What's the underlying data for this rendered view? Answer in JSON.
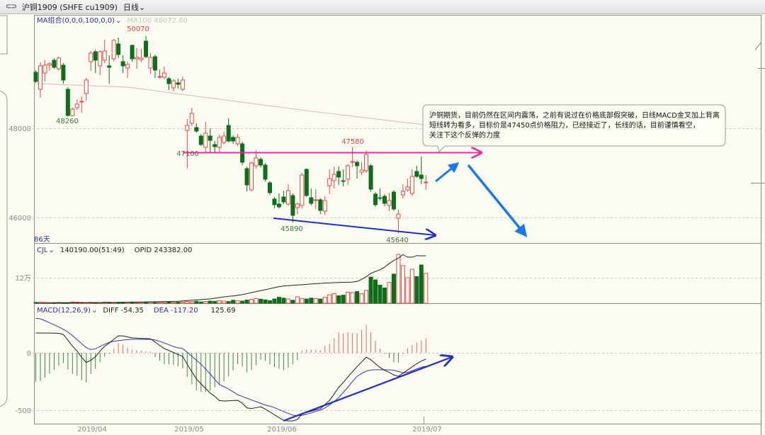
{
  "header": {
    "link_icon": "link-icon",
    "symbol": "沪铜1909 (SHFE  cu1909)",
    "period": "日线",
    "period_icon": "chevron-down-icon"
  },
  "price_panel": {
    "indicator": "MA组合(0,0,0,100,0,0)",
    "ma_readout": "MA100 48072.60",
    "days": "86天",
    "axis_ticks": [
      "48000",
      "46000"
    ],
    "labels": {
      "high": "50070",
      "low1": "48260",
      "low2": "47100",
      "high2": "47580",
      "low3": "45890",
      "low4": "45640"
    }
  },
  "volume_panel": {
    "indicator": "CJL",
    "volume_readout": "140190.00(51:49)",
    "oi_readout": "OPID 243382.00",
    "axis_ticks": [
      "12万"
    ]
  },
  "macd_panel": {
    "indicator": "MACD(12,26,9)",
    "diff": "DIFF -54.35",
    "dea": "DEA -117.20",
    "macd": "125.69",
    "axis_ticks": [
      "0",
      "-500"
    ]
  },
  "dates": [
    "2019/04",
    "2019/05",
    "2019/06",
    "2019/07"
  ],
  "annotation": {
    "line1": "沪铜期货，目前仍然在区间内震荡，之前有说过在价格底部假突破，日线MACD金叉加上背离",
    "line2": "短线转为看多，目标价是47450点价格阻力，已经接近了，长线的话，目前谨慎看空，",
    "line3": "关注下这个反弹的力度"
  },
  "colors": {
    "up": "#e04848",
    "down": "#0e6e1e",
    "ma100": "#c8c0b8",
    "resistance": "#e0309a",
    "trend": "#2030c0",
    "arrow": "#1a78e8",
    "dea": "#3838a8",
    "diff": "#202020"
  },
  "chart_data": {
    "type": "candlestick",
    "ylim": [
      45400,
      50500
    ],
    "resistance_level": 47450,
    "candles_ohlc": [
      [
        49254,
        49300,
        49016,
        49048
      ],
      [
        48873,
        49476,
        48682,
        49397
      ],
      [
        49238,
        49524,
        49048,
        49413
      ],
      [
        49413,
        49476,
        49286,
        49444
      ],
      [
        49524,
        49571,
        49333,
        49365
      ],
      [
        49333,
        49603,
        49286,
        49571
      ],
      [
        49413,
        49460,
        49000,
        49079
      ],
      [
        48873,
        48920,
        48260,
        48286
      ],
      [
        48286,
        48460,
        48260,
        48428
      ],
      [
        48460,
        48651,
        48413,
        48540
      ],
      [
        48587,
        48714,
        48349,
        48603
      ],
      [
        48777,
        49127,
        48619,
        49079
      ],
      [
        49492,
        49730,
        49286,
        49682
      ],
      [
        49714,
        49760,
        49238,
        49524
      ],
      [
        49397,
        49746,
        49190,
        49714
      ],
      [
        49524,
        49984,
        49460,
        49730
      ],
      [
        49397,
        49635,
        49000,
        49365
      ],
      [
        49555,
        50000,
        49500,
        49968
      ],
      [
        49889,
        50032,
        49571,
        49651
      ],
      [
        49492,
        49635,
        49238,
        49397
      ],
      [
        49349,
        49492,
        49127,
        49429
      ],
      [
        49857,
        49873,
        49492,
        49555
      ],
      [
        49555,
        49794,
        49333,
        49587
      ],
      [
        49540,
        49778,
        49476,
        49571
      ],
      [
        49952,
        50070,
        49571,
        49603
      ],
      [
        49349,
        49682,
        49222,
        49587
      ],
      [
        49603,
        49650,
        49127,
        49302
      ],
      [
        49143,
        49317,
        49111,
        49159
      ],
      [
        49143,
        49381,
        49100,
        49238
      ],
      [
        49111,
        49150,
        48857,
        49000
      ],
      [
        48905,
        49100,
        48825,
        49063
      ],
      [
        49016,
        49111,
        48889,
        48984
      ],
      [
        48873,
        49159,
        48830,
        49079
      ],
      [
        47952,
        48206,
        47100,
        48063
      ],
      [
        48111,
        48460,
        48050,
        48333
      ],
      [
        48016,
        48111,
        47900,
        47936
      ],
      [
        47825,
        47870,
        47600,
        47635
      ],
      [
        47571,
        48143,
        47460,
        47889
      ],
      [
        47825,
        48000,
        47460,
        47730
      ],
      [
        47635,
        47714,
        47460,
        47587
      ],
      [
        47571,
        47857,
        47460,
        47794
      ],
      [
        47682,
        47920,
        47640,
        47825
      ],
      [
        48063,
        48222,
        47680,
        47714
      ],
      [
        47794,
        47840,
        47650,
        47714
      ],
      [
        47651,
        47873,
        47600,
        47794
      ],
      [
        47651,
        47700,
        47175,
        47238
      ],
      [
        47095,
        47140,
        46587,
        46730
      ],
      [
        46619,
        47260,
        46587,
        47222
      ],
      [
        47159,
        47508,
        47100,
        47333
      ],
      [
        47302,
        47350,
        47120,
        47175
      ],
      [
        47175,
        47220,
        46800,
        46857
      ],
      [
        46778,
        46820,
        46500,
        46556
      ],
      [
        46413,
        46460,
        46206,
        46286
      ],
      [
        46302,
        46540,
        46200,
        46238
      ],
      [
        46460,
        46600,
        46300,
        46349
      ],
      [
        46302,
        46746,
        46260,
        46603
      ],
      [
        46492,
        46540,
        45890,
        46048
      ],
      [
        46222,
        46340,
        46079,
        46302
      ],
      [
        46270,
        47000,
        46200,
        46952
      ],
      [
        47079,
        47100,
        46460,
        46492
      ],
      [
        46444,
        46650,
        46270,
        46317
      ],
      [
        46381,
        46635,
        46190,
        46397
      ],
      [
        46397,
        46440,
        46080,
        46159
      ],
      [
        46143,
        46476,
        46060,
        46381
      ],
      [
        46714,
        47079,
        46524,
        46873
      ],
      [
        46825,
        47143,
        46650,
        46968
      ],
      [
        47032,
        47143,
        46730,
        46905
      ],
      [
        46825,
        47079,
        46700,
        46810
      ],
      [
        46857,
        47200,
        46730,
        47159
      ],
      [
        47238,
        47580,
        47127,
        47254
      ],
      [
        47238,
        47280,
        46873,
        47159
      ],
      [
        47016,
        47238,
        46950,
        47064
      ],
      [
        47048,
        47500,
        47000,
        47413
      ],
      [
        47159,
        47200,
        46580,
        46635
      ],
      [
        46524,
        46570,
        46238,
        46286
      ],
      [
        46444,
        46650,
        46380,
        46429
      ],
      [
        46476,
        46520,
        46250,
        46317
      ],
      [
        46270,
        46555,
        46143,
        46381
      ],
      [
        46571,
        46610,
        46150,
        46190
      ],
      [
        45984,
        46180,
        45640,
        46079
      ],
      [
        46508,
        46746,
        46430,
        46587
      ],
      [
        46619,
        46873,
        46580,
        46683
      ],
      [
        46540,
        47079,
        46480,
        46921
      ],
      [
        47032,
        47159,
        46890,
        46921
      ],
      [
        46952,
        47365,
        46746,
        46873
      ],
      [
        46778,
        46952,
        46620,
        46794
      ]
    ],
    "ma100": [
      [
        0,
        49000
      ],
      [
        20,
        48920
      ],
      [
        40,
        48650
      ],
      [
        60,
        48380
      ],
      [
        85,
        48072.6
      ]
    ],
    "volume": [
      4000,
      5000,
      4000,
      3000,
      3000,
      4000,
      3000,
      3000,
      6000,
      5000,
      4000,
      3000,
      4000,
      3000,
      3000,
      5000,
      4000,
      3000,
      3000,
      4000,
      5000,
      3000,
      3000,
      4000,
      4000,
      5000,
      3000,
      4000,
      3000,
      5000,
      4000,
      5000,
      6000,
      8000,
      7000,
      9000,
      6000,
      8000,
      10000,
      9000,
      12000,
      10000,
      8000,
      14000,
      12000,
      10000,
      15000,
      18000,
      22000,
      19000,
      16000,
      12000,
      20000,
      28000,
      24000,
      20000,
      14000,
      30000,
      22000,
      20000,
      24000,
      22000,
      20000,
      28000,
      40000,
      45000,
      35000,
      38000,
      52000,
      50000,
      55000,
      45000,
      60000,
      123000,
      110000,
      85000,
      72000,
      98000,
      137000,
      230000,
      177000,
      120000,
      160000,
      125000,
      180000,
      140190
    ],
    "volume_ylim": [
      0,
      250000
    ],
    "open_interest": [
      100000,
      100000,
      100000,
      100500,
      100500,
      101000,
      101000,
      101000,
      101500,
      101500,
      101500,
      102000,
      102000,
      102000,
      102000,
      102500,
      102500,
      102500,
      103000,
      103000,
      103000,
      103500,
      103500,
      103500,
      104000,
      104000,
      104500,
      104500,
      105000,
      105000,
      105500,
      106000,
      107000,
      108000,
      109000,
      110000,
      111000,
      112000,
      113000,
      115000,
      117000,
      119000,
      121000,
      122000,
      124000,
      126000,
      129000,
      132000,
      135000,
      138000,
      141000,
      144000,
      147000,
      150000,
      152000,
      153000,
      154000,
      155000,
      156000,
      157000,
      158000,
      159000,
      160000,
      161000,
      161500,
      162000,
      162500,
      163000,
      163500,
      164000,
      166000,
      172000,
      180000,
      190000,
      196000,
      201000,
      209000,
      220000,
      229000,
      236000,
      247000,
      239000,
      239000,
      244000,
      243000,
      243382
    ],
    "macd_diff": [
      173,
      173,
      172,
      172,
      171,
      170,
      160,
      110,
      58,
      15,
      -40,
      -84,
      -65,
      -35,
      15,
      58,
      85,
      118,
      148,
      147,
      138,
      130,
      128,
      126,
      124,
      122,
      94,
      65,
      37,
      20,
      3,
      -15,
      -31,
      -100,
      -165,
      -228,
      -270,
      -310,
      -350,
      -380,
      -415,
      -420,
      -418,
      -416,
      -414,
      -440,
      -480,
      -485,
      -478,
      -470,
      -490,
      -515,
      -540,
      -565,
      -588,
      -593,
      -593,
      -580,
      -535,
      -520,
      -510,
      -497,
      -488,
      -450,
      -415,
      -360,
      -300,
      -259,
      -210,
      -165,
      -120,
      -80,
      -38,
      -60,
      -95,
      -128,
      -152,
      -170,
      -193,
      -205,
      -178,
      -150,
      -122,
      -95,
      -72,
      -54.35
    ],
    "macd_dea": [
      300,
      296,
      280,
      262,
      245,
      225,
      205,
      182,
      150,
      115,
      80,
      45,
      28,
      35,
      55,
      75,
      90,
      100,
      106,
      111,
      115,
      117,
      117,
      117,
      117,
      117,
      112,
      100,
      86,
      70,
      55,
      44,
      37,
      5,
      -30,
      -65,
      -100,
      -140,
      -185,
      -230,
      -275,
      -295,
      -315,
      -340,
      -365,
      -380,
      -395,
      -410,
      -425,
      -440,
      -455,
      -465,
      -478,
      -495,
      -512,
      -528,
      -543,
      -548,
      -545,
      -535,
      -525,
      -510,
      -500,
      -480,
      -455,
      -425,
      -390,
      -345,
      -300,
      -250,
      -205,
      -180,
      -160,
      -150,
      -147,
      -147,
      -148,
      -148,
      -152,
      -162,
      -175,
      -170,
      -155,
      -140,
      -126,
      -117.2
    ],
    "macd_ylim": [
      -620,
      330
    ]
  }
}
